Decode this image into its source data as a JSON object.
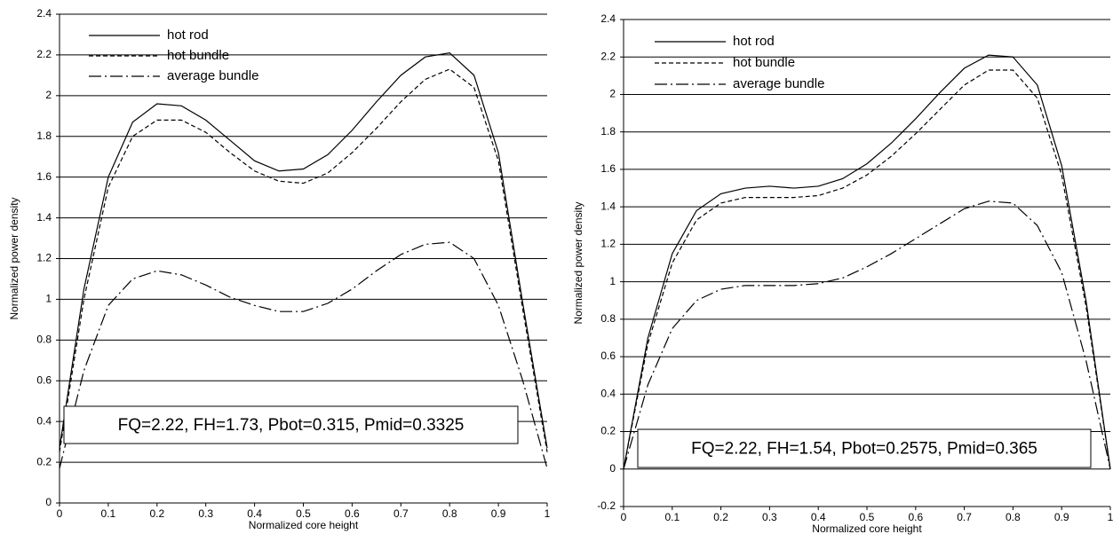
{
  "chart_data": [
    {
      "type": "line",
      "x_label": "Normalized core height",
      "y_label": "Normalized power density",
      "annotation": "FQ=2.22, FH=1.73, Pbot=0.315, Pmid=0.3325",
      "x": [
        0,
        0.05,
        0.1,
        0.15,
        0.2,
        0.25,
        0.3,
        0.35,
        0.4,
        0.45,
        0.5,
        0.55,
        0.6,
        0.65,
        0.7,
        0.75,
        0.8,
        0.85,
        0.9,
        0.95,
        1
      ],
      "series": [
        {
          "name": "hot rod",
          "color": "#000000",
          "dash": "solid",
          "values": [
            0.27,
            1.05,
            1.6,
            1.87,
            1.96,
            1.95,
            1.88,
            1.78,
            1.68,
            1.63,
            1.64,
            1.71,
            1.83,
            1.97,
            2.1,
            2.19,
            2.21,
            2.1,
            1.72,
            0.98,
            0.27
          ]
        },
        {
          "name": "hot bundle",
          "color": "#000000",
          "dash": "dashed",
          "values": [
            0.25,
            1.0,
            1.55,
            1.8,
            1.88,
            1.88,
            1.82,
            1.72,
            1.63,
            1.58,
            1.57,
            1.62,
            1.72,
            1.84,
            1.97,
            2.08,
            2.13,
            2.04,
            1.68,
            0.95,
            0.25
          ]
        },
        {
          "name": "average bundle",
          "color": "#000000",
          "dash": "dashdot",
          "values": [
            0.17,
            0.65,
            0.97,
            1.1,
            1.14,
            1.12,
            1.07,
            1.01,
            0.97,
            0.94,
            0.94,
            0.98,
            1.05,
            1.14,
            1.22,
            1.27,
            1.28,
            1.2,
            0.97,
            0.6,
            0.17
          ]
        }
      ],
      "xlim": [
        0,
        1
      ],
      "xticks": [
        0,
        0.1,
        0.2,
        0.3,
        0.4,
        0.5,
        0.6,
        0.7,
        0.8,
        0.9,
        1
      ],
      "ylim": [
        0,
        2.4
      ],
      "yticks": [
        0,
        0.2,
        0.4,
        0.6,
        0.8,
        1,
        1.2,
        1.4,
        1.6,
        1.8,
        2,
        2.2,
        2.4
      ],
      "grid": true,
      "legend": "upper left"
    },
    {
      "type": "line",
      "x_label": "Normalized core height",
      "y_label": "Normalized power density",
      "annotation": "FQ=2.22, FH=1.54, Pbot=0.2575, Pmid=0.365",
      "x": [
        0,
        0.05,
        0.1,
        0.15,
        0.2,
        0.25,
        0.3,
        0.35,
        0.4,
        0.45,
        0.5,
        0.55,
        0.6,
        0.65,
        0.7,
        0.75,
        0.8,
        0.85,
        0.9,
        0.95,
        1
      ],
      "series": [
        {
          "name": "hot rod",
          "color": "#000000",
          "dash": "solid",
          "values": [
            0,
            0.7,
            1.15,
            1.38,
            1.47,
            1.5,
            1.51,
            1.5,
            1.51,
            1.55,
            1.63,
            1.74,
            1.87,
            2.01,
            2.14,
            2.21,
            2.2,
            2.05,
            1.62,
            0.9,
            0
          ]
        },
        {
          "name": "hot bundle",
          "color": "#000000",
          "dash": "dashed",
          "values": [
            0,
            0.67,
            1.1,
            1.33,
            1.42,
            1.45,
            1.45,
            1.45,
            1.46,
            1.5,
            1.57,
            1.67,
            1.79,
            1.92,
            2.05,
            2.13,
            2.13,
            1.98,
            1.57,
            0.87,
            0
          ]
        },
        {
          "name": "average bundle",
          "color": "#000000",
          "dash": "dashdot",
          "values": [
            0,
            0.45,
            0.75,
            0.9,
            0.96,
            0.98,
            0.98,
            0.98,
            0.99,
            1.02,
            1.08,
            1.15,
            1.23,
            1.31,
            1.39,
            1.43,
            1.42,
            1.3,
            1.05,
            0.58,
            0
          ]
        }
      ],
      "xlim": [
        0,
        1
      ],
      "xticks": [
        0,
        0.1,
        0.2,
        0.3,
        0.4,
        0.5,
        0.6,
        0.7,
        0.8,
        0.9,
        1
      ],
      "ylim": [
        -0.2,
        2.4
      ],
      "yticks": [
        -0.2,
        0,
        0.2,
        0.4,
        0.6,
        0.8,
        1,
        1.2,
        1.4,
        1.6,
        1.8,
        2,
        2.2,
        2.4
      ],
      "grid": true,
      "legend": "upper left"
    }
  ]
}
